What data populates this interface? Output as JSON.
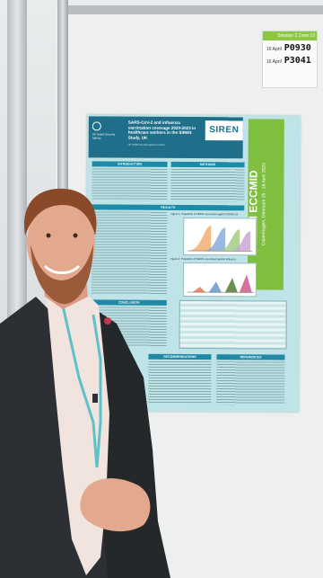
{
  "sign": {
    "header": "Session 2 Zone 13",
    "row1_date": "16 April",
    "row1_code": "P0930",
    "row2_date": "16 April",
    "row2_code": "P3041"
  },
  "poster": {
    "logo_text": "UK Health Security Agency",
    "title": "SARS-CoV-2 and influenza vaccination coverage 2020-2023 in healthcare workers in the SIREN Study, UK",
    "authors": "UK Health Security Agency, London",
    "siren": "SIREN",
    "banner_main": "33rd ECCMID",
    "banner_sub": "Copenhagen, Denmark 15 - 18 April 2023",
    "sections": {
      "introduction": "INTRODUCTION",
      "methods": "METHODS",
      "results": "RESULTS",
      "conclusion": "CONCLUSION",
      "recommendations": "RECOMMENDATIONS",
      "references": "REFERENCES"
    },
    "figure1_caption": "Figure 1: Proportion of SIREN vaccinated against COVID-19",
    "figure2_caption": "Figure 2: Proportion of SIREN vaccinated against influenza"
  }
}
